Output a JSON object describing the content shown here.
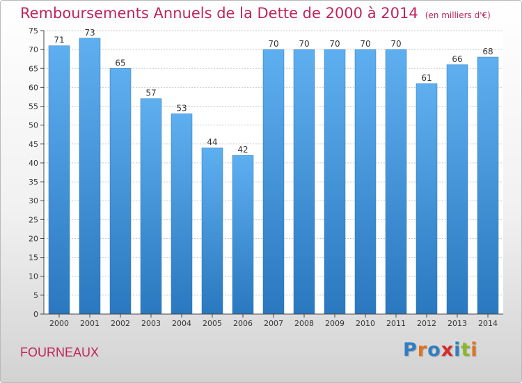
{
  "title": "Remboursements Annuels de la Dette de 2000 à 2014",
  "unit": "(en milliers d'€)",
  "commune": "FOURNEAUX",
  "logo": {
    "letters": [
      "P",
      "r",
      "o",
      "x",
      "i",
      "t",
      "i"
    ],
    "colors": [
      "#2f7ec4",
      "#e0731c",
      "#2f7ec4",
      "#d62d2d",
      "#2f7ec4",
      "#88b82c",
      "#e0731c"
    ]
  },
  "colors": {
    "bar_light": "#5eaff0",
    "bar_dark": "#2f7ec4",
    "title": "#c0245c",
    "axis": "#444444",
    "grid": "#c8c8c8"
  },
  "chart_data": {
    "type": "bar",
    "categories": [
      "2000",
      "2001",
      "2002",
      "2003",
      "2004",
      "2005",
      "2006",
      "2007",
      "2008",
      "2009",
      "2010",
      "2011",
      "2012",
      "2013",
      "2014"
    ],
    "values": [
      71,
      73,
      65,
      57,
      53,
      44,
      42,
      70,
      70,
      70,
      70,
      70,
      61,
      66,
      68
    ],
    "yticks": [
      0,
      5,
      10,
      15,
      20,
      25,
      30,
      35,
      40,
      45,
      50,
      55,
      60,
      65,
      70,
      75
    ],
    "ylim": [
      0,
      75
    ],
    "grid": true,
    "data_labels": true
  }
}
